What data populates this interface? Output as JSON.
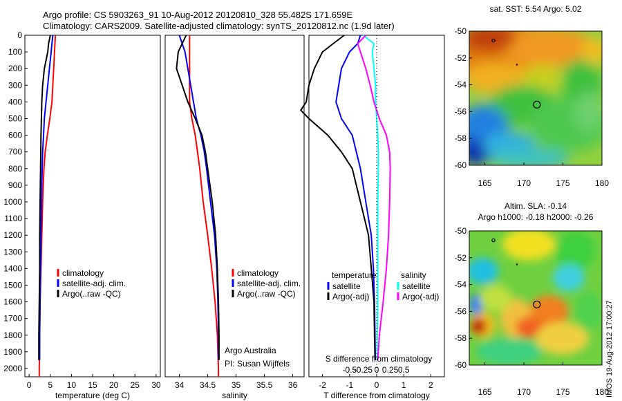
{
  "header": {
    "line1": "Argo profile: CS 5903263_91 10-Aug-2012 20120810_328 55.482S 171.659E",
    "line2": "Climatology: CARS2009. Satellite-adjusted climatology: synTS_20120812.nc (1.9d later)"
  },
  "side_text": "IMOS 19-Aug-2012 17:00:27",
  "colors": {
    "climatology": "#ff0000",
    "satellite": "#0000ff",
    "argo": "#000000",
    "sat_s": "#00ffff",
    "argo_s": "#ff00ff"
  },
  "chart_data": [
    {
      "type": "line",
      "xlabel": "temperature (deg C)",
      "xlim": [
        -1,
        31
      ],
      "xticks": [
        0,
        5,
        10,
        15,
        20,
        25,
        30
      ],
      "ylim": [
        2050,
        0
      ],
      "yticks": [
        0,
        100,
        200,
        300,
        400,
        500,
        600,
        700,
        800,
        900,
        1000,
        1100,
        1200,
        1300,
        1400,
        1500,
        1600,
        1700,
        1800,
        1900,
        2000
      ],
      "legend": [
        "climatology",
        "satellite-adj. clim.",
        "Argo(..raw -QC)"
      ],
      "series": [
        {
          "name": "climatology",
          "depth": [
            0,
            100,
            200,
            300,
            400,
            500,
            600,
            700,
            800,
            1000,
            1200,
            1400,
            1600,
            1800,
            2000,
            2050
          ],
          "values": [
            6.2,
            6.0,
            5.8,
            5.6,
            5.4,
            4.9,
            4.3,
            3.8,
            3.5,
            3.2,
            3.0,
            2.8,
            2.6,
            2.5,
            2.4,
            2.4
          ]
        },
        {
          "name": "satellite-adj. clim.",
          "depth": [
            0,
            100,
            200,
            300,
            400,
            500,
            600,
            700,
            800,
            1000,
            1200,
            1400,
            1600,
            1800,
            1950
          ],
          "values": [
            5.6,
            5.2,
            4.8,
            4.4,
            4.0,
            3.6,
            3.4,
            3.2,
            3.1,
            2.9,
            2.8,
            2.7,
            2.6,
            2.5,
            2.5
          ]
        },
        {
          "name": "Argo(..raw -QC)",
          "depth": [
            0,
            50,
            100,
            200,
            300,
            400,
            500,
            600,
            800,
            1000,
            1200,
            1400,
            1600,
            1800,
            1950
          ],
          "values": [
            5.0,
            4.6,
            4.4,
            3.6,
            3.2,
            3.0,
            2.9,
            2.8,
            2.7,
            2.6,
            2.5,
            2.5,
            2.4,
            2.3,
            2.3
          ]
        }
      ]
    },
    {
      "type": "line",
      "xlabel": "salinity",
      "xlim": [
        33.75,
        36.2
      ],
      "xticks": [
        34,
        34.5,
        35,
        35.5,
        36
      ],
      "ylim": [
        2050,
        0
      ],
      "legend": [
        "climatology",
        "satellite-adj. clim.",
        "Argo(..raw -QC)"
      ],
      "annotations": [
        "Argo Australia",
        "PI: Susan Wijffels"
      ],
      "series": [
        {
          "name": "climatology",
          "depth": [
            0,
            200,
            400,
            500,
            600,
            800,
            1000,
            1200,
            1400,
            1600,
            1800,
            2000,
            2050
          ],
          "values": [
            34.18,
            34.18,
            34.18,
            34.22,
            34.28,
            34.36,
            34.42,
            34.5,
            34.57,
            34.63,
            34.67,
            34.69,
            34.69
          ]
        },
        {
          "name": "satellite-adj. clim.",
          "depth": [
            0,
            100,
            200,
            300,
            400,
            500,
            600,
            700,
            800,
            1000,
            1200,
            1400,
            1600,
            1800,
            1950
          ],
          "values": [
            34.0,
            34.1,
            34.15,
            34.2,
            34.25,
            34.3,
            34.38,
            34.44,
            34.48,
            34.55,
            34.62,
            34.66,
            34.68,
            34.69,
            34.69
          ]
        },
        {
          "name": "Argo(..raw -QC)",
          "depth": [
            0,
            50,
            100,
            200,
            300,
            400,
            500,
            600,
            700,
            800,
            1000,
            1200,
            1400,
            1600,
            1800,
            1950
          ],
          "values": [
            34.12,
            34.05,
            33.98,
            33.95,
            34.05,
            34.15,
            34.28,
            34.4,
            34.46,
            34.5,
            34.58,
            34.64,
            34.67,
            34.69,
            34.7,
            34.7
          ]
        }
      ]
    },
    {
      "type": "line",
      "xlabel": "T difference from climatology",
      "xlim": [
        -2.5,
        2.5
      ],
      "xticks": [
        -2,
        -1,
        0,
        1,
        2
      ],
      "secondary_xlabel": "S difference from climatology",
      "secondary_xticks": [
        "-0.5",
        "-0.25",
        "0",
        "0.25",
        "0.5"
      ],
      "ylim": [
        2050,
        0
      ],
      "legend_titles": [
        "temperature",
        "salinity"
      ],
      "legend": [
        "satellite",
        "Argo(-adj)",
        "satellite",
        "Argo(-adj)"
      ],
      "series": [
        {
          "name": "satellite",
          "depth": [
            0,
            50,
            100,
            200,
            300,
            400,
            500,
            600,
            800,
            1000,
            1200,
            1400,
            1600,
            1800,
            1950
          ],
          "values": [
            -0.6,
            -0.7,
            -1.0,
            -1.3,
            -1.4,
            -1.5,
            -1.3,
            -0.9,
            -0.6,
            -0.4,
            -0.2,
            -0.12,
            -0.08,
            -0.06,
            -0.05
          ]
        },
        {
          "name": "Argo(-adj)",
          "depth": [
            0,
            50,
            100,
            200,
            300,
            400,
            450,
            500,
            600,
            700,
            800,
            1000,
            1200,
            1400,
            1600,
            1800,
            1950
          ],
          "values": [
            -1.2,
            -1.6,
            -2.0,
            -2.3,
            -2.5,
            -2.6,
            -2.8,
            -2.5,
            -1.8,
            -1.3,
            -0.9,
            -0.6,
            -0.3,
            -0.2,
            -0.1,
            -0.08,
            -0.06
          ]
        },
        {
          "name": "satellite",
          "depth": [
            0,
            50,
            100,
            200,
            300,
            400,
            500,
            600,
            700,
            800,
            1000,
            1200,
            1400,
            1600,
            1800,
            1950
          ],
          "values": [
            -0.25,
            -0.05,
            -0.08,
            -0.05,
            -0.02,
            -0.02,
            0.0,
            0.02,
            0.03,
            0.03,
            0.02,
            0.02,
            0.02,
            0.02,
            0.01,
            0.01
          ]
        },
        {
          "name": "Argo(-adj)",
          "depth": [
            0,
            50,
            100,
            200,
            300,
            400,
            500,
            600,
            700,
            800,
            1000,
            1200,
            1400,
            1600,
            1800,
            1950
          ],
          "values": [
            -0.2,
            -0.35,
            -0.3,
            -0.2,
            -0.12,
            -0.05,
            0.05,
            0.18,
            0.24,
            0.25,
            0.24,
            0.22,
            0.18,
            0.12,
            0.05,
            0.02
          ]
        }
      ]
    },
    {
      "type": "heatmap",
      "title": "sat. SST: 5.54 Argo: 5.02",
      "xlim": [
        163,
        180
      ],
      "xticks": [
        165,
        170,
        175,
        180
      ],
      "ylim": [
        -60,
        -50
      ],
      "yticks": [
        -50,
        -52,
        -54,
        -56,
        -58,
        -60
      ]
    },
    {
      "type": "heatmap",
      "title": "Altim. SLA: -0.14",
      "subtitle": "Argo h1000: -0.18 h2000: -0.26",
      "xlim": [
        163,
        180
      ],
      "xticks": [
        165,
        170,
        175,
        180
      ],
      "ylim": [
        -60,
        -50
      ],
      "yticks": [
        -50,
        -52,
        -54,
        -56,
        -58,
        -60
      ]
    }
  ]
}
